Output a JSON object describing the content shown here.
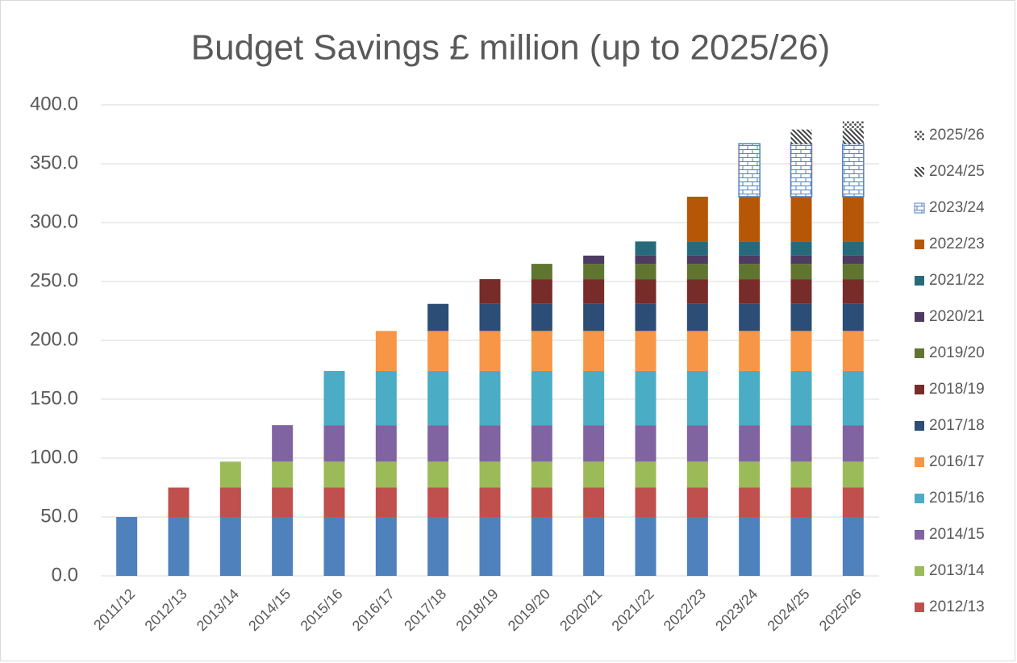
{
  "chart_data": {
    "type": "bar",
    "stacked": true,
    "title": "Budget Savings £ million (up to 2025/26)",
    "categories": [
      "2011/12",
      "2012/13",
      "2013/14",
      "2014/15",
      "2015/16",
      "2016/17",
      "2017/18",
      "2018/19",
      "2019/20",
      "2020/21",
      "2021/22",
      "2022/23",
      "2023/24",
      "2024/25",
      "2025/26"
    ],
    "ylim": [
      0,
      400
    ],
    "yticks": [
      {
        "value": 0,
        "label": "0.0"
      },
      {
        "value": 50,
        "label": "50.0"
      },
      {
        "value": 100,
        "label": "100.0"
      },
      {
        "value": 150,
        "label": "150.0"
      },
      {
        "value": 200,
        "label": "200.0"
      },
      {
        "value": 250,
        "label": "250.0"
      },
      {
        "value": 300,
        "label": "300.0"
      },
      {
        "value": 350,
        "label": "350.0"
      },
      {
        "value": 400,
        "label": "400.0"
      }
    ],
    "grid": true,
    "legend": "right",
    "series": [
      {
        "color": "#4f81bd",
        "values": [
          50,
          50,
          50,
          50,
          50,
          50,
          50,
          50,
          50,
          50,
          50,
          50,
          50,
          50,
          50
        ]
      },
      {
        "name": "2012/13",
        "color": "#c0504d",
        "values": [
          null,
          25,
          25,
          25,
          25,
          25,
          25,
          25,
          25,
          25,
          25,
          25,
          25,
          25,
          25
        ]
      },
      {
        "name": "2013/14",
        "color": "#9bbb59",
        "values": [
          null,
          null,
          22,
          22,
          22,
          22,
          22,
          22,
          22,
          22,
          22,
          22,
          22,
          22,
          22
        ]
      },
      {
        "name": "2014/15",
        "color": "#8064a2",
        "values": [
          null,
          null,
          null,
          31,
          31,
          31,
          31,
          31,
          31,
          31,
          31,
          31,
          31,
          31,
          31
        ]
      },
      {
        "name": "2015/16",
        "color": "#4bacc6",
        "values": [
          null,
          null,
          null,
          null,
          46,
          46,
          46,
          46,
          46,
          46,
          46,
          46,
          46,
          46,
          46
        ]
      },
      {
        "name": "2016/17",
        "color": "#f79646",
        "values": [
          null,
          null,
          null,
          null,
          null,
          34,
          34,
          34,
          34,
          34,
          34,
          34,
          34,
          34,
          34
        ]
      },
      {
        "name": "2017/18",
        "color": "#2c4d75",
        "values": [
          null,
          null,
          null,
          null,
          null,
          null,
          23,
          23,
          23,
          23,
          23,
          23,
          23,
          23,
          23
        ]
      },
      {
        "name": "2018/19",
        "color": "#772c2a",
        "values": [
          null,
          null,
          null,
          null,
          null,
          null,
          null,
          21,
          21,
          21,
          21,
          21,
          21,
          21,
          21
        ]
      },
      {
        "name": "2019/20",
        "color": "#5f7530",
        "values": [
          null,
          null,
          null,
          null,
          null,
          null,
          null,
          null,
          13,
          13,
          13,
          13,
          13,
          13,
          13
        ]
      },
      {
        "name": "2020/21",
        "color": "#4d3b62",
        "values": [
          null,
          null,
          null,
          null,
          null,
          null,
          null,
          null,
          null,
          7,
          7,
          7,
          7,
          7,
          7
        ]
      },
      {
        "name": "2021/22",
        "color": "#276a7c",
        "values": [
          null,
          null,
          null,
          null,
          null,
          null,
          null,
          null,
          null,
          null,
          12,
          12,
          12,
          12,
          12
        ]
      },
      {
        "name": "2022/23",
        "color": "#b65708",
        "values": [
          null,
          null,
          null,
          null,
          null,
          null,
          null,
          null,
          null,
          null,
          null,
          38,
          38,
          38,
          38
        ]
      },
      {
        "name": "2023/24",
        "color": "#4f81bd",
        "pattern": "brick",
        "values": [
          null,
          null,
          null,
          null,
          null,
          null,
          null,
          null,
          null,
          null,
          null,
          null,
          45,
          45,
          45
        ]
      },
      {
        "name": "2024/25",
        "color": "#404040",
        "pattern": "diagonal",
        "values": [
          null,
          null,
          null,
          null,
          null,
          null,
          null,
          null,
          null,
          null,
          null,
          null,
          null,
          12,
          12
        ]
      },
      {
        "name": "2025/26",
        "color": "#595959",
        "pattern": "dots",
        "values": [
          null,
          null,
          null,
          null,
          null,
          null,
          null,
          null,
          null,
          null,
          null,
          null,
          null,
          null,
          7
        ]
      }
    ]
  }
}
